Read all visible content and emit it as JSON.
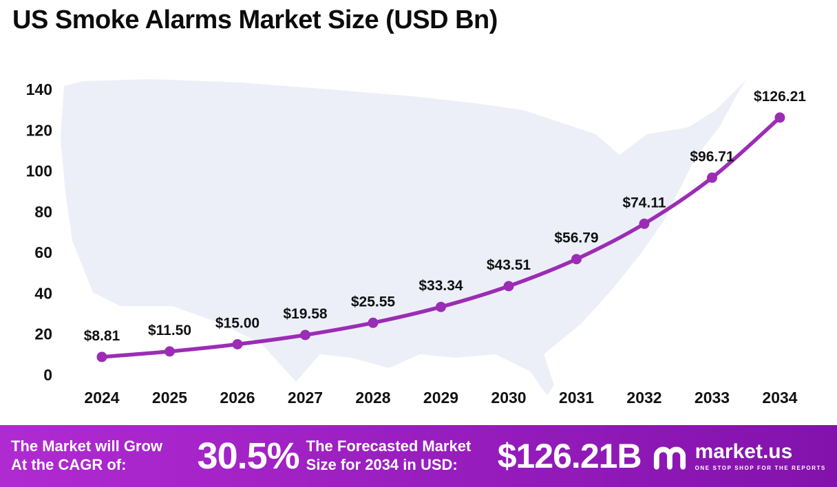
{
  "title": "US Smoke Alarms Market Size (USD Bn)",
  "chart_data": {
    "type": "line",
    "title": "US Smoke Alarms Market Size (USD Bn)",
    "categories": [
      "2024",
      "2025",
      "2026",
      "2027",
      "2028",
      "2029",
      "2030",
      "2031",
      "2032",
      "2033",
      "2034"
    ],
    "values": [
      8.81,
      11.5,
      15.0,
      19.58,
      25.55,
      33.34,
      43.51,
      56.79,
      74.11,
      96.71,
      126.21
    ],
    "point_labels": [
      "$8.81",
      "$11.50",
      "$15.00",
      "$19.58",
      "$25.55",
      "$33.34",
      "$43.51",
      "$56.79",
      "$74.11",
      "$96.71",
      "$126.21"
    ],
    "xlabel": "",
    "ylabel": "",
    "ylim": [
      0,
      140
    ],
    "yticks": [
      0,
      20,
      40,
      60,
      80,
      100,
      120,
      140
    ],
    "grid": false,
    "legend": "none",
    "line_color": "#9b2cb5",
    "map_color": "#ECEFF8"
  },
  "footer": {
    "cagr_label_line1": "The Market will Grow",
    "cagr_label_line2": "At the CAGR of:",
    "cagr_value": "30.5%",
    "forecast_label_line1": "The Forecasted Market",
    "forecast_label_line2": "Size for 2034 in USD:",
    "forecast_value": "$126.21B",
    "brand_name": "market.us",
    "brand_tagline": "ONE STOP SHOP FOR THE REPORTS",
    "gradient": [
      "#b02ad2",
      "#8312ac"
    ]
  }
}
